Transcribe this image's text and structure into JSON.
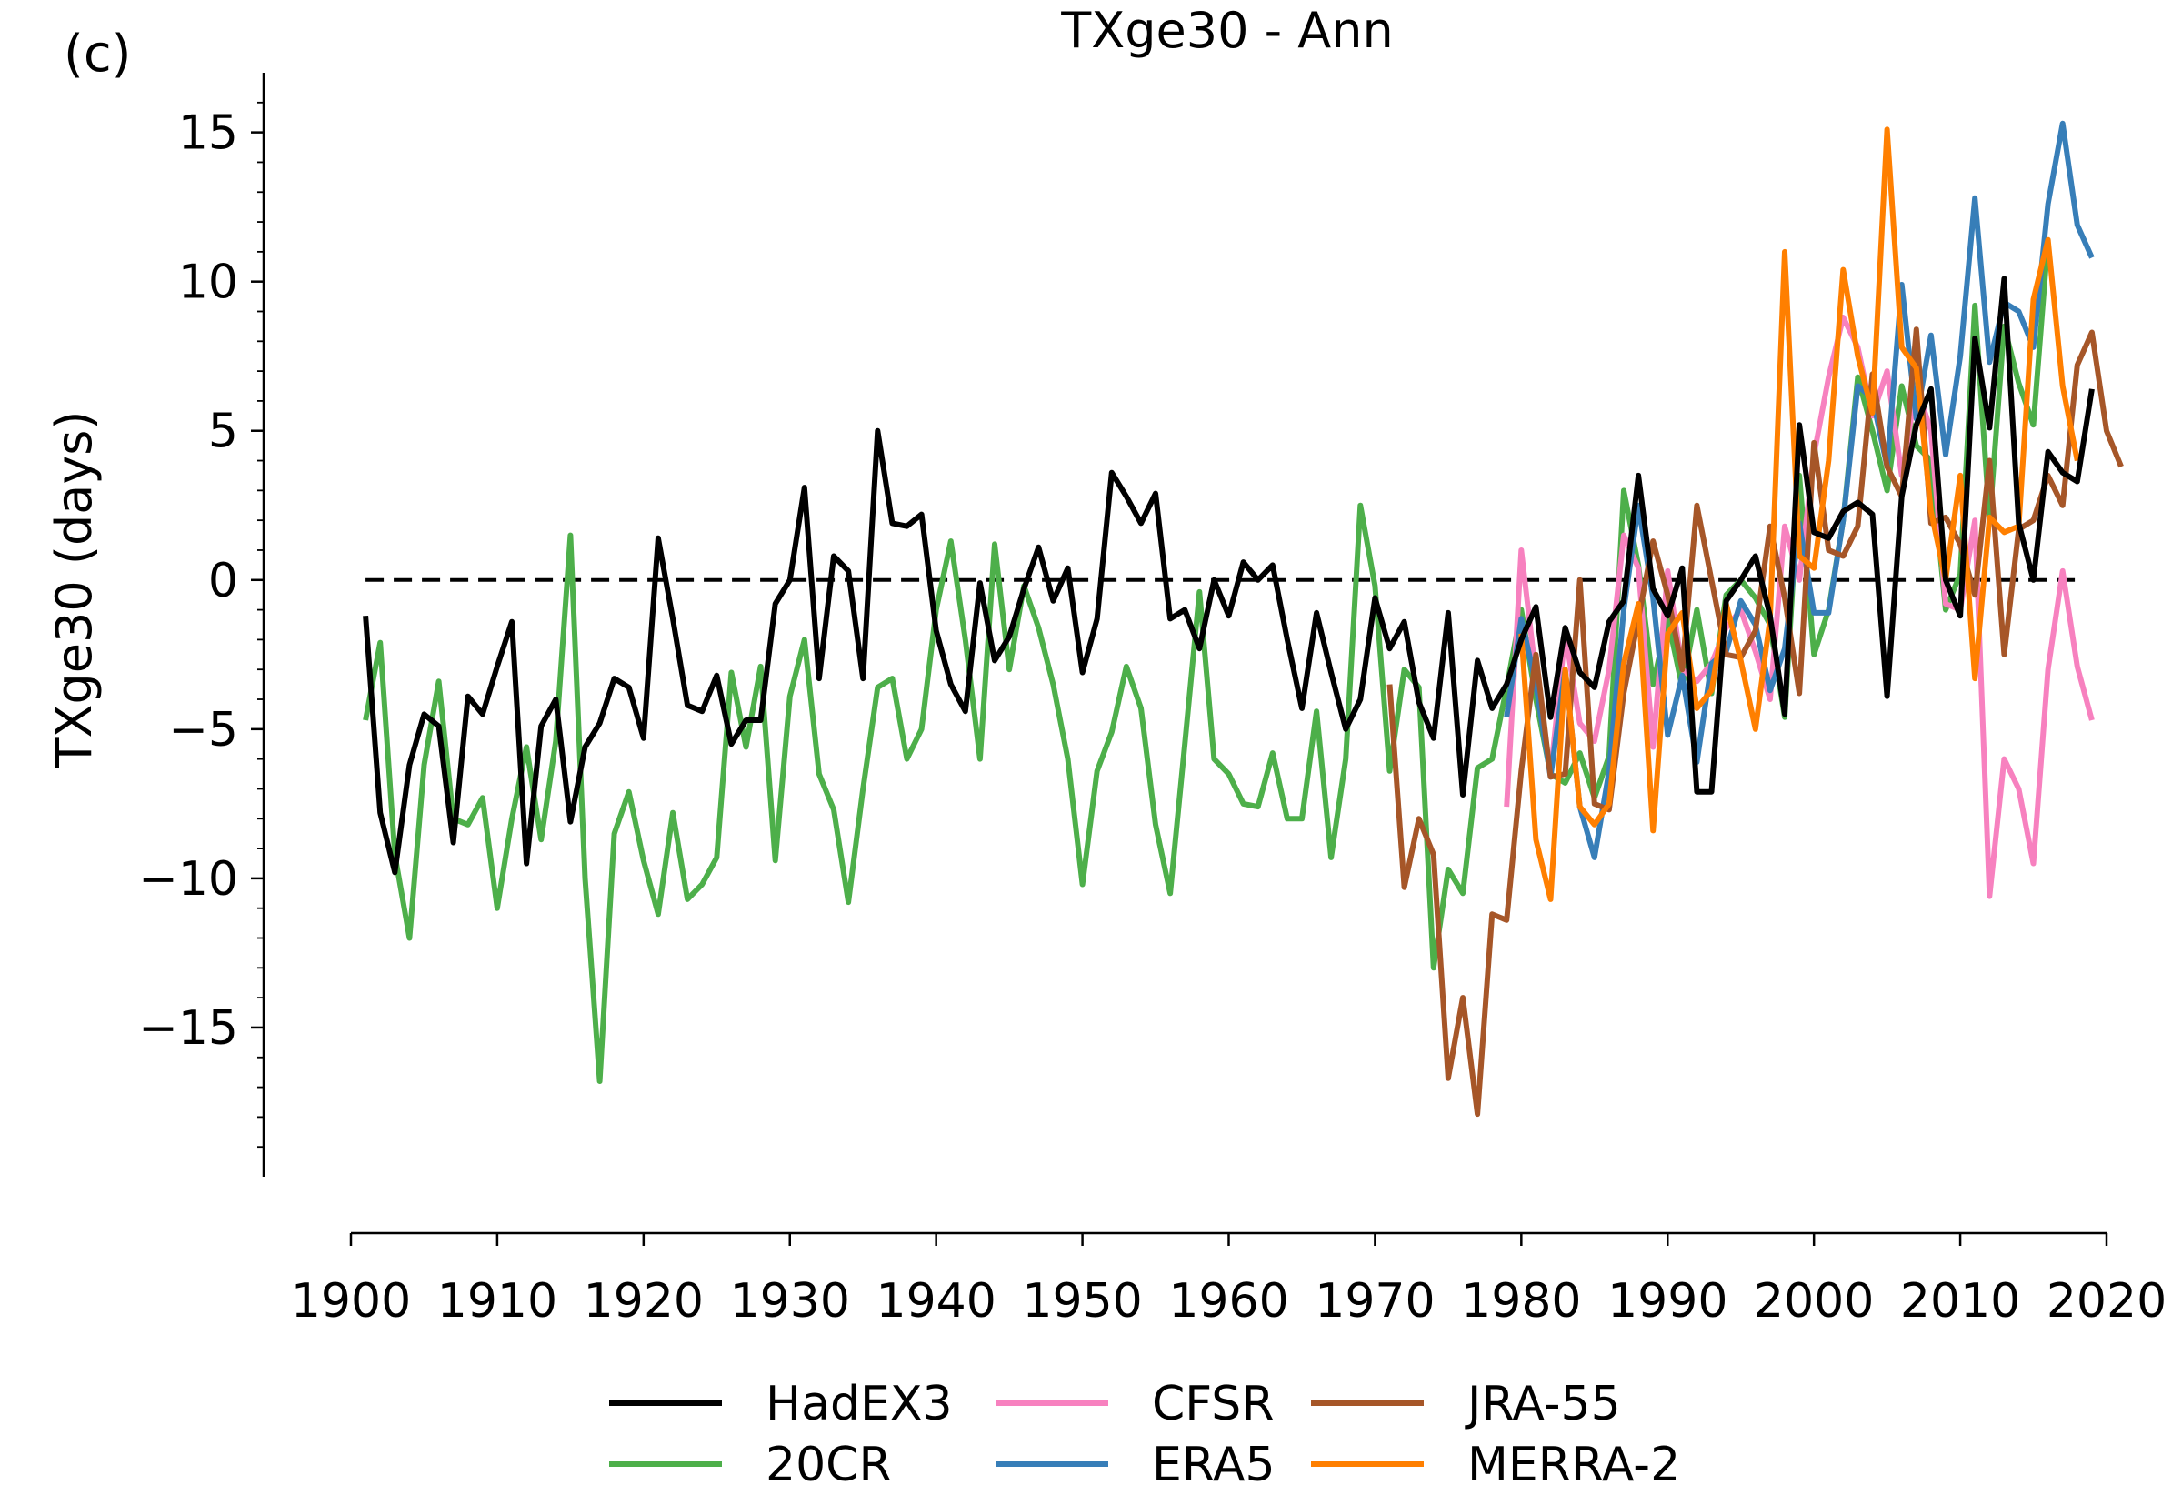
{
  "panel_label": "(c)",
  "chart_data": {
    "type": "line",
    "title": "TXge30 - Ann",
    "xlabel": "",
    "ylabel": "TXge30 (days)",
    "xlim": [
      1900,
      2020
    ],
    "ylim": [
      -20,
      17
    ],
    "x_ticks": [
      1900,
      1910,
      1920,
      1930,
      1940,
      1950,
      1960,
      1970,
      1980,
      1990,
      2000,
      2010,
      2020
    ],
    "y_ticks": [
      -15,
      -10,
      -5,
      0,
      5,
      10,
      15
    ],
    "y_tick_labels": [
      "−15",
      "−10",
      "−5",
      "0",
      "5",
      "10",
      "15"
    ],
    "reference_line": {
      "y": 0,
      "style": "dashed",
      "color": "#000000"
    },
    "grid": false,
    "legend_position": "bottom-center",
    "series": [
      {
        "name": "HadEX3",
        "color": "#000000",
        "x_start": 1901,
        "values": [
          -1.2,
          -7.8,
          -9.8,
          -6.2,
          -4.5,
          -4.9,
          -8.8,
          -3.9,
          -4.5,
          -2.9,
          -1.4,
          -9.5,
          -4.9,
          -4.0,
          -8.1,
          -5.6,
          -4.8,
          -3.3,
          -3.6,
          -5.3,
          1.4,
          -1.3,
          -4.2,
          -4.4,
          -3.2,
          -5.5,
          -4.7,
          -4.7,
          -0.8,
          0.0,
          3.1,
          -3.3,
          0.8,
          0.3,
          -3.3,
          5.0,
          1.9,
          1.8,
          2.2,
          -1.7,
          -3.5,
          -4.4,
          -0.1,
          -2.7,
          -1.9,
          -0.3,
          1.1,
          -0.7,
          0.4,
          -3.1,
          -1.3,
          3.6,
          2.8,
          1.9,
          2.9,
          -1.3,
          -1.0,
          -2.3,
          0.0,
          -1.2,
          0.6,
          0.0,
          0.5,
          -2.0,
          -4.3,
          -1.1,
          -3.1,
          -5.0,
          -4.0,
          -0.6,
          -2.3,
          -1.4,
          -4.1,
          -5.3,
          -1.1,
          -7.2,
          -2.7,
          -4.3,
          -3.5,
          -2.0,
          -0.9,
          -4.6,
          -1.6,
          -3.1,
          -3.6,
          -1.4,
          -0.7,
          3.5,
          -0.3,
          -1.2,
          0.4,
          -7.1,
          -7.1,
          -0.7,
          0.0,
          0.8,
          -1.2,
          -4.5,
          5.2,
          1.6,
          1.4,
          2.3,
          2.6,
          2.2,
          -3.9,
          2.8,
          5.2,
          6.4,
          0.0,
          -1.2,
          8.1,
          5.1,
          10.1,
          1.9,
          0.0,
          4.3,
          3.6,
          3.3,
          6.4
        ]
      },
      {
        "name": "20CR",
        "color": "#4daf4a",
        "x_start": 1901,
        "values": [
          -4.7,
          -2.1,
          -9.2,
          -12.0,
          -6.2,
          -3.4,
          -8.0,
          -8.2,
          -7.3,
          -11.0,
          -8.0,
          -5.6,
          -8.7,
          -5.4,
          1.5,
          -10.0,
          -16.8,
          -8.5,
          -7.1,
          -9.4,
          -11.2,
          -7.8,
          -10.7,
          -10.2,
          -9.3,
          -3.1,
          -5.6,
          -2.9,
          -9.4,
          -3.9,
          -2.0,
          -6.5,
          -7.7,
          -10.8,
          -7.0,
          -3.6,
          -3.3,
          -6.0,
          -5.0,
          -1.0,
          1.3,
          -2.0,
          -6.0,
          1.2,
          -3.0,
          -0.2,
          -1.6,
          -3.5,
          -6.0,
          -10.2,
          -6.4,
          -5.1,
          -2.9,
          -4.3,
          -8.2,
          -10.5,
          -5.5,
          -0.4,
          -6.0,
          -6.5,
          -7.5,
          -7.6,
          -5.8,
          -8.0,
          -8.0,
          -4.4,
          -9.3,
          -6.0,
          2.5,
          -0.2,
          -6.4,
          -3.0,
          -3.6,
          -13.0,
          -9.7,
          -10.5,
          -6.3,
          -6.0,
          -3.6,
          -1.0,
          -4.0,
          -6.5,
          -6.8,
          -5.8,
          -7.3,
          -5.9,
          3.0,
          0.5,
          -3.5,
          -1.3,
          -3.6,
          -1.0,
          -3.8,
          -0.5,
          0.0,
          -0.6,
          -1.5,
          -4.6,
          3.5,
          -2.5,
          -1.0,
          2.0,
          6.8,
          5.0,
          3.0,
          6.5,
          4.5,
          4.0,
          -1.0,
          0.2,
          9.2,
          2.0,
          8.5,
          6.6,
          5.2,
          11.4
        ]
      },
      {
        "name": "CFSR",
        "color": "#f781bf",
        "x_start": 1979,
        "values": [
          -7.6,
          1.0,
          -3.2,
          -6.5,
          -1.8,
          -4.8,
          -5.4,
          -3.0,
          1.5,
          0.4,
          -5.6,
          0.3,
          -3.0,
          -3.4,
          -2.8,
          -1.6,
          -1.0,
          -2.4,
          -4.0,
          1.8,
          0.0,
          4.2,
          6.8,
          8.8,
          7.8,
          5.5,
          7.0,
          3.5,
          6.5,
          5.0,
          -0.8,
          -1.0,
          2.0,
          -10.6,
          -6.0,
          -7.0,
          -9.5,
          -3.0,
          0.3,
          -2.9,
          -4.7
        ]
      },
      {
        "name": "ERA5",
        "color": "#377eb8",
        "x_start": 1979,
        "values": [
          -4.6,
          -1.3,
          -3.5,
          -6.6,
          -3.0,
          -7.6,
          -9.3,
          -6.4,
          -1.0,
          2.5,
          -0.6,
          -5.2,
          -3.2,
          -6.1,
          -2.8,
          -2.4,
          -0.7,
          -1.5,
          -3.7,
          -2.3,
          1.9,
          -1.1,
          -1.1,
          2.0,
          6.5,
          6.1,
          3.8,
          9.9,
          5.4,
          8.2,
          4.2,
          7.5,
          12.8,
          7.3,
          9.3,
          9.0,
          7.8,
          12.6,
          15.3,
          11.9,
          10.8
        ]
      },
      {
        "name": "JRA-55",
        "color": "#a65628",
        "x_start": 1958,
        "values": [
          null,
          null,
          null,
          null,
          null,
          null,
          null,
          null,
          null,
          null,
          null,
          null,
          null,
          -3.5,
          -10.3,
          -8.0,
          -9.2,
          -16.7,
          -14.0,
          -17.9,
          -11.2,
          -11.4,
          -6.4,
          -2.5,
          -6.6,
          -6.5,
          0.0,
          -7.5,
          -7.7,
          -3.8,
          -1.3,
          1.3,
          -0.5,
          -3.0,
          2.5,
          0.0,
          -2.5,
          -2.6,
          -1.7,
          1.8,
          -0.6,
          -3.8,
          4.6,
          1.0,
          0.8,
          1.8,
          6.9,
          3.8,
          2.8,
          8.4,
          1.9,
          2.1,
          1.2,
          -0.5,
          4.0,
          -2.5,
          1.7,
          2.0,
          3.5,
          2.5,
          7.2,
          8.3,
          5.0,
          3.8
        ]
      },
      {
        "name": "MERRA-2",
        "color": "#ff7f00",
        "x_start": 1980,
        "values": [
          -1.8,
          -8.7,
          -10.7,
          -3.0,
          -7.6,
          -8.2,
          -7.5,
          -2.8,
          -0.8,
          -8.4,
          -1.8,
          -1.1,
          -4.3,
          -3.7,
          -0.8,
          -2.7,
          -5.0,
          -1.3,
          11.0,
          0.8,
          0.4,
          4.0,
          10.4,
          7.5,
          5.6,
          15.1,
          7.8,
          7.1,
          2.3,
          0.0,
          3.5,
          -3.3,
          2.1,
          1.6,
          1.8,
          9.4,
          11.4,
          6.5,
          4.0
        ]
      }
    ]
  }
}
